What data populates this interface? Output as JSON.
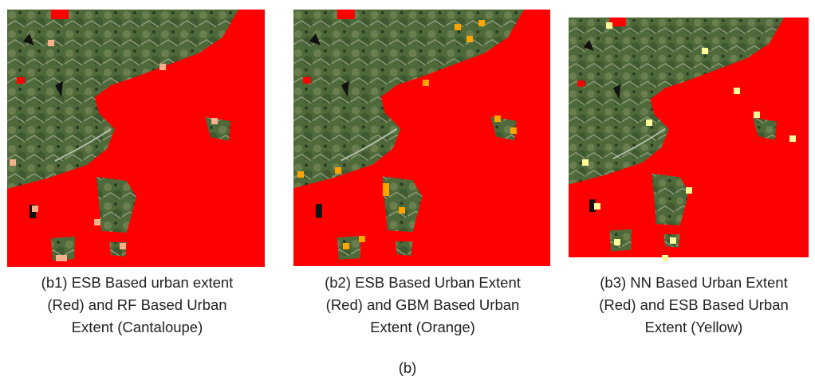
{
  "panels": [
    {
      "caption": [
        "(b1) ESB Based urban extent",
        "(Red) and RF Based Urban",
        "Extent (Cantaloupe)"
      ]
    },
    {
      "caption": [
        "(b2) ESB Based Urban Extent",
        "(Red) and GBM Based Urban",
        "Extent (Orange)"
      ]
    },
    {
      "caption": [
        "(b3) NN Based Urban Extent",
        "(Red) and ESB Based Urban",
        "Extent (Yellow)"
      ]
    }
  ],
  "figure_label": "(b)"
}
